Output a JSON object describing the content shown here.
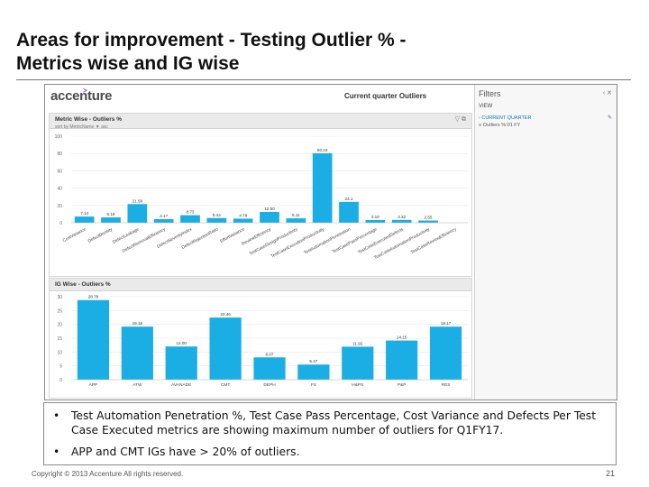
{
  "slide": {
    "title_line1": "Areas for improvement - Testing Outlier % -",
    "title_line2": "Metrics wise and IG wise",
    "footer": "Copyright © 2013 Accenture All rights reserved.",
    "page_number": "21"
  },
  "dashboard": {
    "logo": "accenture",
    "header_title": "Current quarter Outliers",
    "filters": {
      "title": "Filters",
      "view_label": "VIEW",
      "item_primary": "› CURRENT QUARTER",
      "item_secondary": "≡ Outliers %:01 FY"
    }
  },
  "colors": {
    "bar": "#1aaee5",
    "grid": "#e6e6e6",
    "panel_header": "#eaeaea",
    "text_dark": "#111111"
  },
  "chart_data": [
    {
      "type": "bar",
      "title": "Metric Wise - Outliers %",
      "subtitle": "sort by MetricName ▼ asc",
      "categories": [
        "CostVariance",
        "DefectDensity",
        "DefectLeakage",
        "DefectRemovalEfficiency",
        "DefectSeverityIndex",
        "DefectRejectionRatio",
        "EffortVariance",
        "ReviewEfficiency",
        "TestCaseDesignProductivity",
        "TestCaseExecutionProductivity",
        "TestAutomationPenetration",
        "TestCasePassPercentage",
        "TestCaseExecutedDefects",
        "TestCaseAutomationProductivity",
        "TestCaseReviewEfficiency"
      ],
      "values": [
        7.14,
        6.18,
        21.58,
        4.17,
        8.73,
        5.44,
        4.78,
        12.5,
        5.11,
        80.24,
        24.1,
        3.1,
        3.32,
        2.55,
        0
      ],
      "labels": [
        "7.14",
        "6.18",
        "21.58",
        "4.17",
        "8.73",
        "5.44",
        "4.78",
        "12.50",
        "5.11",
        "80.24",
        "24.1",
        "3.10",
        "3.32",
        "2.55",
        ""
      ],
      "ylim": [
        0,
        100
      ],
      "yticks": [
        "100",
        "80",
        "60",
        "40",
        "20",
        "0"
      ]
    },
    {
      "type": "bar",
      "title": "IG Wise - Outliers %",
      "categories": [
        "APP",
        "ATW",
        "AVANADE",
        "CMT",
        "DEPH",
        "FS",
        "H&PS",
        "P&P",
        "RES"
      ],
      "values": [
        28.78,
        19.18,
        12.0,
        22.46,
        8.07,
        5.47,
        11.92,
        14.15,
        19.17
      ],
      "labels": [
        "28.78",
        "19.18",
        "12.00",
        "22.46",
        "8.07",
        "5.47",
        "11.92",
        "14.15",
        "19.17"
      ],
      "ylim": [
        0,
        30
      ],
      "yticks": [
        "30",
        "25",
        "20",
        "15",
        "10",
        "5",
        "0"
      ]
    }
  ],
  "bullets": [
    "Test Automation Penetration %, Test Case Pass Percentage, Cost Variance and Defects Per Test Case Executed metrics are showing maximum number of outliers for Q1FY17.",
    "APP and CMT IGs have > 20% of outliers."
  ]
}
